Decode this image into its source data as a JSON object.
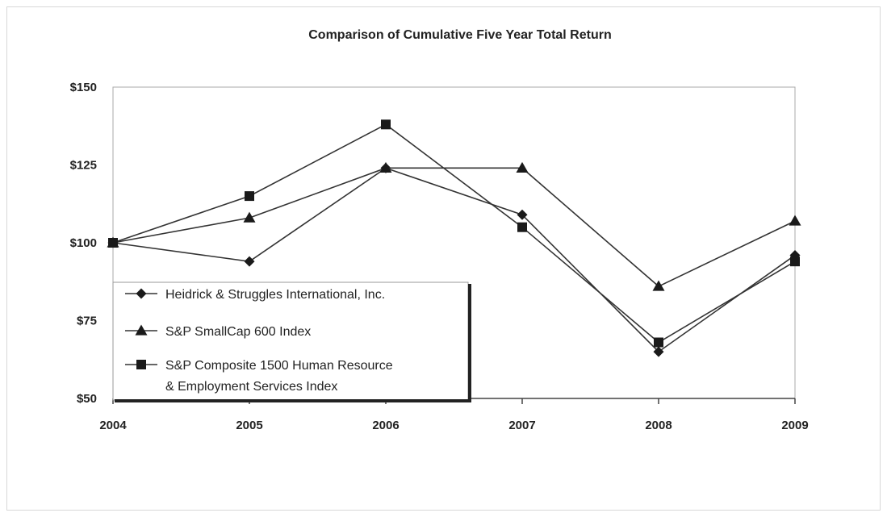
{
  "chart_data": {
    "type": "line",
    "title": "Comparison of Cumulative Five Year Total Return",
    "xlabel": "",
    "ylabel": "",
    "x": [
      "2004",
      "2005",
      "2006",
      "2007",
      "2008",
      "2009"
    ],
    "yticks": [
      "$50",
      "$75",
      "$100",
      "$125",
      "$150"
    ],
    "ylim": [
      50,
      150
    ],
    "grid": false,
    "legend_position": "bottom-left",
    "series": [
      {
        "name": "Heidrick & Struggles International, Inc.",
        "marker": "diamond",
        "values": [
          100,
          94,
          124,
          109,
          65,
          96
        ]
      },
      {
        "name": "S&P SmallCap 600 Index",
        "marker": "triangle",
        "values": [
          100,
          108,
          124,
          124,
          86,
          107
        ]
      },
      {
        "name": "S&P Composite 1500 Human Resource & Employment Services Index",
        "legend_lines": [
          "S&P Composite 1500 Human Resource",
          "& Employment Services Index"
        ],
        "marker": "square",
        "values": [
          100,
          115,
          138,
          105,
          68,
          94
        ]
      }
    ],
    "colors": {
      "line": "#333333",
      "marker": "#1a1a1a",
      "axis": "#aaaaaa"
    }
  }
}
